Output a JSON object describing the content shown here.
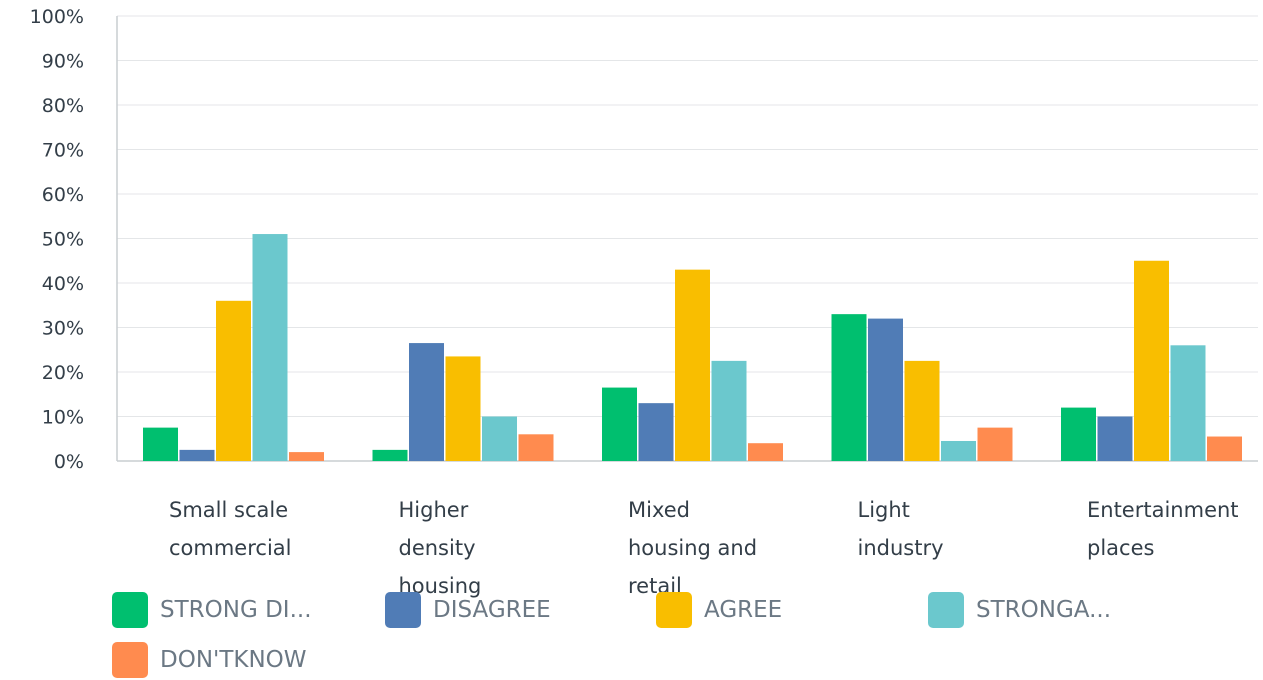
{
  "chart_data": {
    "type": "bar",
    "categories": [
      [
        "Small scale",
        "commercial"
      ],
      [
        "Higher",
        "density",
        "housing"
      ],
      [
        "Mixed",
        "housing and",
        "retail"
      ],
      [
        "Light",
        "industry"
      ],
      [
        "Entertainment",
        "places"
      ]
    ],
    "series": [
      {
        "name": "STRONG DI...",
        "color": "#00bf6f",
        "values": [
          7.5,
          2.5,
          16.5,
          33,
          12
        ]
      },
      {
        "name": "DISAGREE",
        "color": "#507cb6",
        "values": [
          2.5,
          26.5,
          13,
          32,
          10
        ]
      },
      {
        "name": "AGREE",
        "color": "#f9be00",
        "values": [
          36,
          23.5,
          43,
          22.5,
          45
        ]
      },
      {
        "name": "STRONGA...",
        "color": "#6bc8cd",
        "values": [
          51,
          10,
          22.5,
          4.5,
          26
        ]
      },
      {
        "name": "DON'TKNOW",
        "color": "#ff8b4f",
        "values": [
          2,
          6,
          4,
          7.5,
          5.5
        ]
      }
    ],
    "ylim": [
      0,
      100
    ],
    "yticks": [
      "0%",
      "10%",
      "20%",
      "30%",
      "40%",
      "50%",
      "60%",
      "70%",
      "80%",
      "90%",
      "100%"
    ],
    "grid": true,
    "legend_position": "bottom"
  }
}
